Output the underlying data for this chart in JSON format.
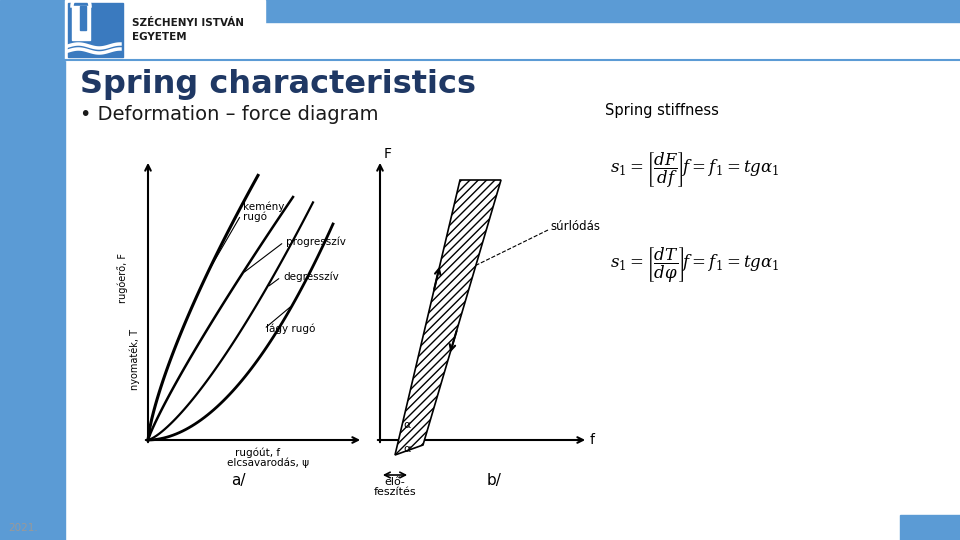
{
  "title": "Spring characteristics",
  "bullet": "• Deformation – force diagram",
  "stiffness_label": "Spring stiffness",
  "footer": "2021.",
  "bg_color": "#ffffff",
  "header_bar_color": "#5b9bd5",
  "left_bar_color": "#5b9bd5",
  "title_color": "#1f3864",
  "bullet_color": "#1a1a1a",
  "footer_box_color": "#5b9bd5",
  "logo_box_color": "#ffffff",
  "logo_blue": "#3a7abf"
}
